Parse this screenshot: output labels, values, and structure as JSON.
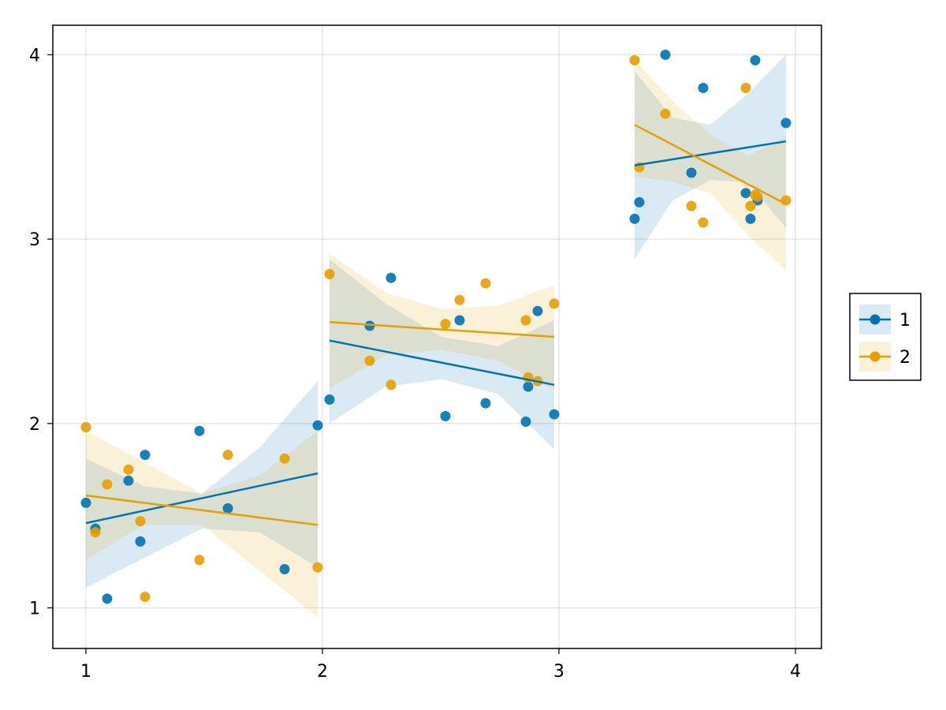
{
  "chart_data": {
    "type": "scatter",
    "title": "",
    "xlabel": "",
    "ylabel": "",
    "xlim": [
      0.86,
      4.11
    ],
    "ylim": [
      0.78,
      4.16
    ],
    "xticks": [
      {
        "value": 1,
        "label": "1"
      },
      {
        "value": 2,
        "label": "2"
      },
      {
        "value": 3,
        "label": "3"
      },
      {
        "value": 4,
        "label": "4"
      }
    ],
    "yticks": [
      {
        "value": 1,
        "label": "1"
      },
      {
        "value": 2,
        "label": "2"
      },
      {
        "value": 3,
        "label": "3"
      },
      {
        "value": 4,
        "label": "4"
      }
    ],
    "grid": true,
    "legend_position": "right",
    "series": [
      {
        "name": "1",
        "color": "#0072b2",
        "points": [
          [
            1.0,
            1.57
          ],
          [
            1.04,
            1.43
          ],
          [
            1.09,
            1.05
          ],
          [
            1.18,
            1.69
          ],
          [
            1.23,
            1.36
          ],
          [
            1.25,
            1.83
          ],
          [
            1.48,
            1.96
          ],
          [
            1.6,
            1.54
          ],
          [
            1.84,
            1.21
          ],
          [
            1.98,
            1.99
          ],
          [
            2.03,
            2.13
          ],
          [
            2.2,
            2.53
          ],
          [
            2.29,
            2.79
          ],
          [
            2.52,
            2.04
          ],
          [
            2.58,
            2.56
          ],
          [
            2.69,
            2.11
          ],
          [
            2.86,
            2.01
          ],
          [
            2.87,
            2.2
          ],
          [
            2.91,
            2.61
          ],
          [
            2.98,
            2.05
          ],
          [
            3.32,
            3.11
          ],
          [
            3.34,
            3.2
          ],
          [
            3.45,
            4.0
          ],
          [
            3.56,
            3.36
          ],
          [
            3.61,
            3.82
          ],
          [
            3.79,
            3.25
          ],
          [
            3.81,
            3.11
          ],
          [
            3.83,
            3.97
          ],
          [
            3.84,
            3.21
          ],
          [
            3.96,
            3.63
          ]
        ],
        "fits": [
          {
            "x": [
              1.0,
              1.98
            ],
            "y": [
              1.46,
              1.73
            ],
            "band_lower": [
              1.11,
              1.27,
              1.43,
              1.41,
              1.22
            ],
            "band_upper": [
              1.81,
              1.66,
              1.62,
              1.87,
              2.23
            ]
          },
          {
            "x": [
              2.03,
              2.98
            ],
            "y": [
              2.45,
              2.21
            ],
            "band_lower": [
              2.0,
              2.2,
              2.24,
              2.16,
              1.86
            ],
            "band_upper": [
              2.89,
              2.65,
              2.47,
              2.42,
              2.56
            ]
          },
          {
            "x": [
              3.32,
              3.96
            ],
            "y": [
              3.4,
              3.53
            ],
            "band_lower": [
              2.89,
              3.21,
              3.32,
              3.31,
              3.06
            ],
            "band_upper": [
              3.91,
              3.66,
              3.62,
              3.79,
              4.0
            ]
          }
        ]
      },
      {
        "name": "2",
        "color": "#e69f00",
        "points": [
          [
            1.0,
            1.98
          ],
          [
            1.04,
            1.41
          ],
          [
            1.09,
            1.67
          ],
          [
            1.18,
            1.75
          ],
          [
            1.23,
            1.47
          ],
          [
            1.25,
            1.06
          ],
          [
            1.48,
            1.26
          ],
          [
            1.6,
            1.83
          ],
          [
            1.84,
            1.81
          ],
          [
            1.98,
            1.22
          ],
          [
            2.03,
            2.81
          ],
          [
            2.2,
            2.34
          ],
          [
            2.29,
            2.21
          ],
          [
            2.52,
            2.54
          ],
          [
            2.58,
            2.67
          ],
          [
            2.69,
            2.76
          ],
          [
            2.86,
            2.56
          ],
          [
            2.87,
            2.25
          ],
          [
            2.91,
            2.23
          ],
          [
            2.98,
            2.65
          ],
          [
            3.32,
            3.97
          ],
          [
            3.34,
            3.39
          ],
          [
            3.45,
            3.68
          ],
          [
            3.56,
            3.18
          ],
          [
            3.61,
            3.09
          ],
          [
            3.79,
            3.82
          ],
          [
            3.81,
            3.18
          ],
          [
            3.83,
            3.24
          ],
          [
            3.84,
            3.23
          ],
          [
            3.96,
            3.21
          ]
        ],
        "fits": [
          {
            "x": [
              1.0,
              1.98
            ],
            "y": [
              1.61,
              1.45
            ],
            "band_lower": [
              1.26,
              1.45,
              1.45,
              1.2,
              0.95
            ],
            "band_upper": [
              1.96,
              1.79,
              1.62,
              1.72,
              1.96
            ]
          },
          {
            "x": [
              2.03,
              2.98
            ],
            "y": [
              2.55,
              2.47
            ],
            "band_lower": [
              2.19,
              2.37,
              2.4,
              2.34,
              2.18
            ],
            "band_upper": [
              2.92,
              2.71,
              2.62,
              2.64,
              2.75
            ]
          },
          {
            "x": [
              3.32,
              3.96
            ],
            "y": [
              3.62,
              3.19
            ],
            "band_lower": [
              3.34,
              3.31,
              3.25,
              3.02,
              2.83
            ],
            "band_upper": [
              3.97,
              3.75,
              3.57,
              3.45,
              3.56
            ]
          }
        ]
      }
    ]
  }
}
